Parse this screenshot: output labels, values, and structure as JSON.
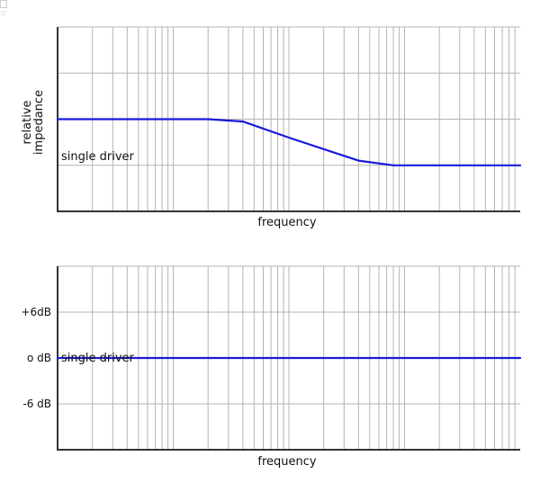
{
  "chart_data": [
    {
      "type": "line",
      "title": "",
      "xlabel": "frequency",
      "ylabel": "relative impedance",
      "ylabel_lines": [
        "relative",
        "impedance"
      ],
      "x_scale": "log",
      "xlim": [
        10,
        100000
      ],
      "ylim": [
        0,
        4
      ],
      "x_tick_labels": [],
      "y_tick_labels": [],
      "grid": true,
      "series": [
        {
          "name": "single driver",
          "color": "#1a1ad8",
          "x": [
            10,
            200,
            400,
            1000,
            4000,
            8000,
            100000
          ],
          "y": [
            2,
            2,
            1.95,
            1.6,
            1.1,
            1,
            1
          ]
        }
      ]
    },
    {
      "type": "line",
      "title": "",
      "xlabel": "frequency",
      "ylabel": "",
      "x_scale": "log",
      "xlim": [
        10,
        100000
      ],
      "ylim": [
        -12,
        12
      ],
      "y_ticks": [
        6,
        0,
        -6
      ],
      "y_tick_labels": [
        "+6dB",
        "o dB",
        "-6 dB"
      ],
      "grid": true,
      "series": [
        {
          "name": "single driver",
          "color": "#1a1ad8",
          "x": [
            10,
            100000
          ],
          "y": [
            0,
            0
          ]
        }
      ]
    }
  ],
  "icons": {
    "corner": "document-fragment-icon"
  }
}
